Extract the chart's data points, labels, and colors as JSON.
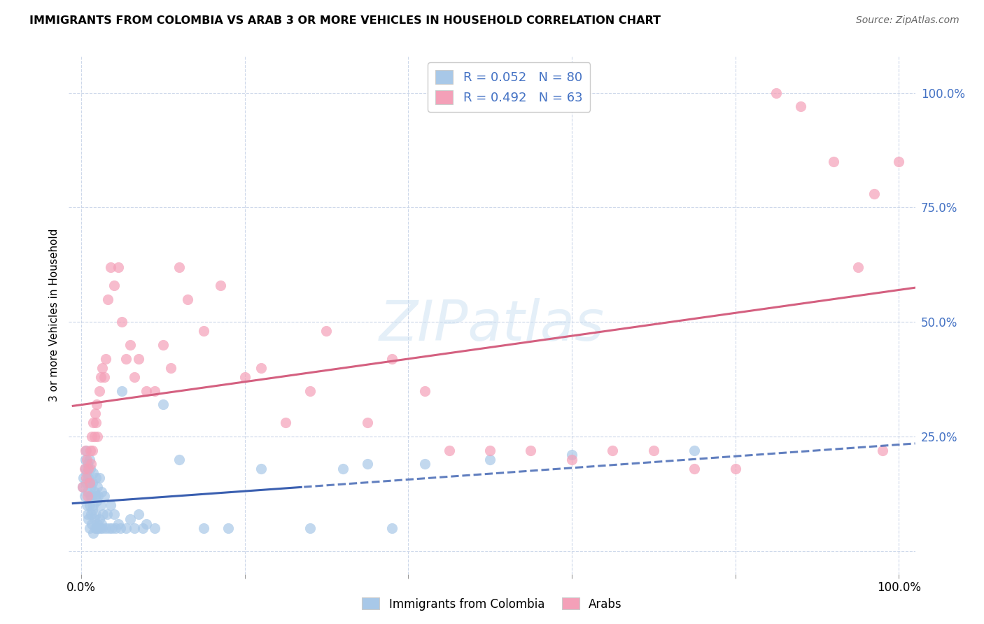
{
  "title": "IMMIGRANTS FROM COLOMBIA VS ARAB 3 OR MORE VEHICLES IN HOUSEHOLD CORRELATION CHART",
  "source": "Source: ZipAtlas.com",
  "ylabel": "3 or more Vehicles in Household",
  "xlim": [
    0,
    1
  ],
  "ylim": [
    -0.05,
    1.08
  ],
  "ytick_values": [
    0.0,
    0.25,
    0.5,
    0.75,
    1.0
  ],
  "ytick_labels": [
    "",
    "25.0%",
    "50.0%",
    "75.0%",
    "100.0%"
  ],
  "xtick_values": [
    0.0,
    0.2,
    0.4,
    0.6,
    0.8,
    1.0
  ],
  "xtick_labels": [
    "0.0%",
    "",
    "",
    "",
    "",
    "100.0%"
  ],
  "colombia_R": 0.052,
  "colombia_N": 80,
  "arab_R": 0.492,
  "arab_N": 63,
  "colombia_color": "#a8c8e8",
  "arab_color": "#f4a0b8",
  "colombia_line_color": "#3a5fb0",
  "arab_line_color": "#d46080",
  "legend_label_colombia": "Immigrants from Colombia",
  "legend_label_arab": "Arabs",
  "watermark": "ZIPatlas",
  "colombia_x": [
    0.002,
    0.003,
    0.004,
    0.005,
    0.005,
    0.006,
    0.006,
    0.007,
    0.007,
    0.008,
    0.008,
    0.008,
    0.009,
    0.009,
    0.01,
    0.01,
    0.01,
    0.01,
    0.011,
    0.011,
    0.012,
    0.012,
    0.013,
    0.013,
    0.014,
    0.014,
    0.015,
    0.015,
    0.015,
    0.016,
    0.016,
    0.017,
    0.017,
    0.018,
    0.018,
    0.019,
    0.019,
    0.02,
    0.02,
    0.021,
    0.021,
    0.022,
    0.022,
    0.023,
    0.024,
    0.025,
    0.025,
    0.026,
    0.027,
    0.028,
    0.03,
    0.032,
    0.034,
    0.036,
    0.038,
    0.04,
    0.042,
    0.045,
    0.048,
    0.05,
    0.055,
    0.06,
    0.065,
    0.07,
    0.075,
    0.08,
    0.09,
    0.1,
    0.12,
    0.15,
    0.18,
    0.22,
    0.28,
    0.32,
    0.35,
    0.38,
    0.42,
    0.5,
    0.6,
    0.75
  ],
  "colombia_y": [
    0.14,
    0.16,
    0.12,
    0.18,
    0.2,
    0.15,
    0.22,
    0.1,
    0.17,
    0.08,
    0.13,
    0.19,
    0.07,
    0.16,
    0.05,
    0.1,
    0.15,
    0.2,
    0.12,
    0.18,
    0.08,
    0.14,
    0.06,
    0.12,
    0.09,
    0.15,
    0.04,
    0.1,
    0.17,
    0.07,
    0.13,
    0.05,
    0.12,
    0.08,
    0.16,
    0.05,
    0.11,
    0.06,
    0.14,
    0.05,
    0.12,
    0.07,
    0.16,
    0.05,
    0.1,
    0.06,
    0.13,
    0.05,
    0.08,
    0.12,
    0.05,
    0.08,
    0.05,
    0.1,
    0.05,
    0.08,
    0.05,
    0.06,
    0.05,
    0.35,
    0.05,
    0.07,
    0.05,
    0.08,
    0.05,
    0.06,
    0.05,
    0.32,
    0.2,
    0.05,
    0.05,
    0.18,
    0.05,
    0.18,
    0.19,
    0.05,
    0.19,
    0.2,
    0.21,
    0.22
  ],
  "arab_x": [
    0.002,
    0.004,
    0.005,
    0.006,
    0.007,
    0.008,
    0.009,
    0.01,
    0.011,
    0.012,
    0.013,
    0.014,
    0.015,
    0.016,
    0.017,
    0.018,
    0.019,
    0.02,
    0.022,
    0.024,
    0.026,
    0.028,
    0.03,
    0.033,
    0.036,
    0.04,
    0.045,
    0.05,
    0.055,
    0.06,
    0.065,
    0.07,
    0.08,
    0.09,
    0.1,
    0.11,
    0.12,
    0.13,
    0.15,
    0.17,
    0.2,
    0.22,
    0.25,
    0.28,
    0.3,
    0.35,
    0.38,
    0.42,
    0.45,
    0.5,
    0.55,
    0.6,
    0.65,
    0.7,
    0.75,
    0.8,
    0.85,
    0.88,
    0.92,
    0.95,
    0.97,
    0.98,
    1.0
  ],
  "arab_y": [
    0.14,
    0.18,
    0.22,
    0.16,
    0.2,
    0.12,
    0.18,
    0.15,
    0.22,
    0.19,
    0.25,
    0.22,
    0.28,
    0.25,
    0.3,
    0.28,
    0.32,
    0.25,
    0.35,
    0.38,
    0.4,
    0.38,
    0.42,
    0.55,
    0.62,
    0.58,
    0.62,
    0.5,
    0.42,
    0.45,
    0.38,
    0.42,
    0.35,
    0.35,
    0.45,
    0.4,
    0.62,
    0.55,
    0.48,
    0.58,
    0.38,
    0.4,
    0.28,
    0.35,
    0.48,
    0.28,
    0.42,
    0.35,
    0.22,
    0.22,
    0.22,
    0.2,
    0.22,
    0.22,
    0.18,
    0.18,
    1.0,
    0.97,
    0.85,
    0.62,
    0.78,
    0.22,
    0.85
  ]
}
